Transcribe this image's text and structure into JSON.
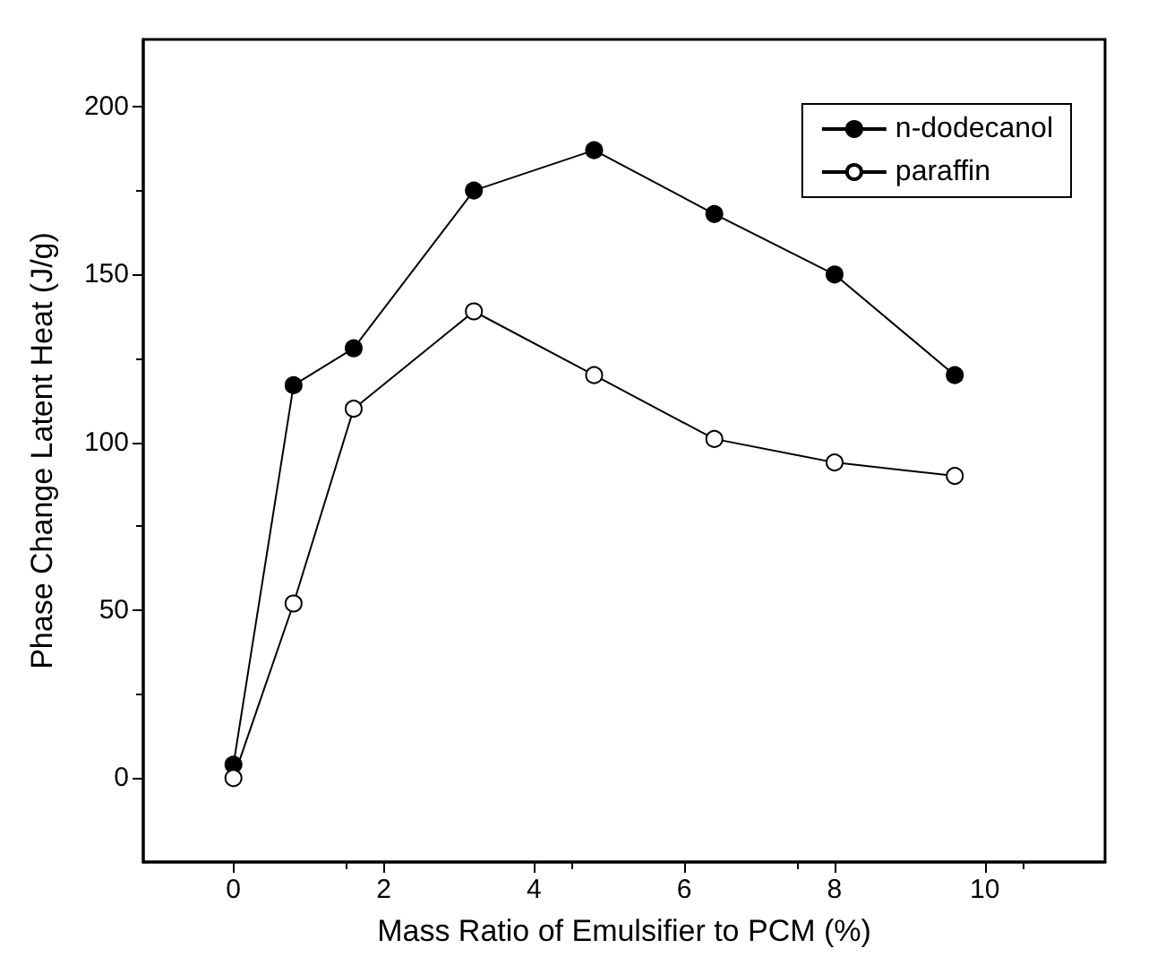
{
  "chart_data": {
    "type": "line",
    "xlabel": "Mass Ratio of Emulsifier to PCM (%)",
    "ylabel": "Phase Change Latent Heat (J/g)",
    "x": [
      0,
      0.8,
      1.6,
      3.2,
      4.8,
      6.4,
      8,
      9.6
    ],
    "series": [
      {
        "name": "n-dodecanol",
        "color": "#000000",
        "values": [
          4,
          117,
          128,
          175,
          187,
          168,
          150,
          120
        ]
      },
      {
        "name": "paraffin",
        "color": "#000000",
        "values": [
          0,
          52,
          110,
          139,
          120,
          101,
          94,
          90
        ]
      }
    ],
    "xlim": [
      -1.2,
      11.6
    ],
    "xticks": [
      0,
      2,
      4,
      6,
      8,
      10
    ],
    "ylim": [
      -25,
      220
    ],
    "yticks": [
      0,
      50,
      100,
      150,
      200
    ],
    "grid": false,
    "legend": "top right",
    "marker": "circle",
    "line_style": "solid"
  }
}
